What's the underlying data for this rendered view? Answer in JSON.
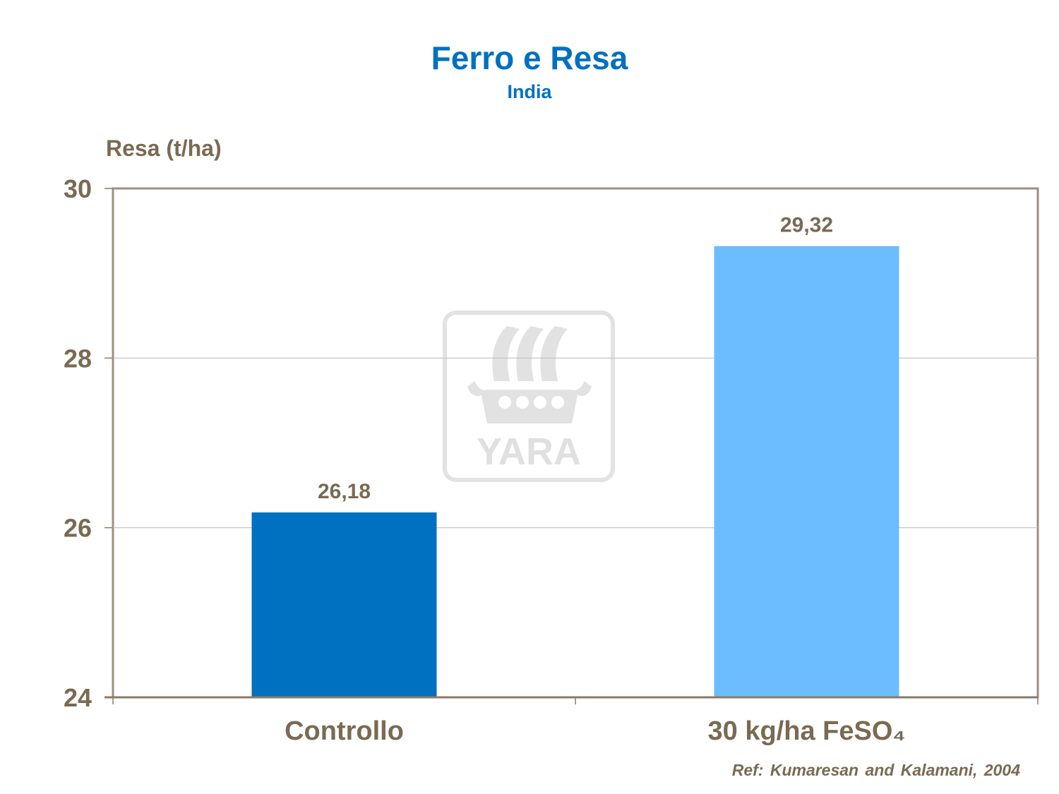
{
  "chart_data": {
    "type": "bar",
    "title": "Ferro e Resa",
    "subtitle": "India",
    "ylabel": "Resa (t/ha)",
    "xlabel": "",
    "categories": [
      "Controllo",
      "30 kg/ha FeSO₄"
    ],
    "values": [
      26.18,
      29.32
    ],
    "data_labels": [
      "26,18",
      "29,32"
    ],
    "bar_colors": [
      "#0070c0",
      "#6bbdff"
    ],
    "ylim": [
      24,
      30
    ],
    "yticks": [
      24,
      26,
      28,
      30
    ],
    "ytick_labels": [
      "24",
      "26",
      "28",
      "30"
    ],
    "grid": true,
    "legend": "none"
  },
  "watermark": {
    "text": "YARA",
    "icon": "yara-viking-ship-logo"
  },
  "reference": "Ref: Kumaresan and Kalamani,  2004",
  "colors": {
    "title": "#0070c0",
    "text": "#7a6a52",
    "axis": "#8a7a68",
    "grid": "#bfbfbf"
  }
}
